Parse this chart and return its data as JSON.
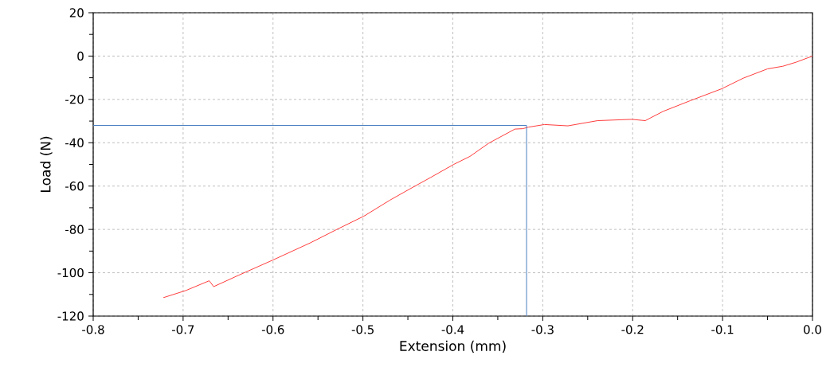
{
  "chart_data": {
    "type": "line",
    "xlabel": "Extension (mm)",
    "ylabel": "Load (N)",
    "xlim": [
      -0.8,
      0
    ],
    "ylim": [
      -120,
      20
    ],
    "xticks": [
      -0.8,
      -0.7,
      -0.6,
      -0.5,
      -0.4,
      -0.3,
      -0.2,
      -0.1,
      {
        "value": 0,
        "label": "0.0"
      }
    ],
    "yticks": [
      -120,
      -100,
      -80,
      -60,
      -40,
      -20,
      0,
      20
    ],
    "grid": true,
    "marker": "none",
    "line_style": "solid",
    "series": [
      {
        "color": "#ff3b3b",
        "x": [
          -0.722,
          -0.697,
          -0.671,
          -0.666,
          -0.638,
          -0.6,
          -0.558,
          -0.529,
          -0.499,
          -0.47,
          -0.449,
          -0.425,
          -0.399,
          -0.381,
          -0.36,
          -0.331,
          -0.322,
          -0.316,
          -0.298,
          -0.272,
          -0.239,
          -0.201,
          -0.186,
          -0.166,
          -0.136,
          -0.101,
          -0.077,
          -0.05,
          -0.033,
          -0.018,
          0
        ],
        "values": [
          -111.5,
          -108.2,
          -103.7,
          -106.4,
          -101.1,
          -94.1,
          -86.1,
          -80,
          -73.9,
          -66.5,
          -61.6,
          -56.1,
          -50,
          -46.3,
          -40.2,
          -33.7,
          -33.5,
          -32.8,
          -31.6,
          -32.2,
          -29.8,
          -29.2,
          -29.8,
          -25.5,
          -20.6,
          -15.1,
          -10.2,
          -5.9,
          -4.7,
          -2.8,
          0
        ]
      },
      {
        "color": "#4a7fc1",
        "x": [
          -0.8,
          -0.318,
          -0.318
        ],
        "values": [
          -32,
          -32,
          -120
        ]
      }
    ]
  }
}
